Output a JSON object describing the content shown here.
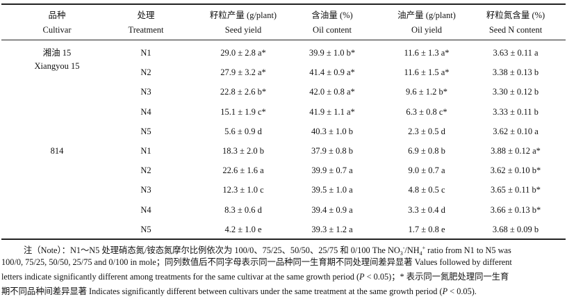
{
  "table": {
    "header": [
      [
        "品种",
        "Cultivar"
      ],
      [
        "处理",
        "Treatment"
      ],
      [
        "籽粒产量 (g/plant)",
        "Seed yield"
      ],
      [
        "含油量 (%)",
        "Oil content"
      ],
      [
        "油产量 (g/plant)",
        "Oil yield"
      ],
      [
        "籽粒氮含量 (%)",
        "Seed N content"
      ]
    ],
    "groups": [
      {
        "cultivar": [
          "湘油 15",
          "Xiangyou 15"
        ],
        "rows": [
          [
            "N1",
            "29.0 ± 2.8 a*",
            "39.9 ± 1.0 b*",
            "11.6 ± 1.3 a*",
            "3.63 ± 0.11 a"
          ],
          [
            "N2",
            "27.9 ± 3.2 a*",
            "41.4 ± 0.9 a*",
            "11.6 ± 1.5 a*",
            "3.38 ± 0.13 b"
          ],
          [
            "N3",
            "22.8 ± 2.6 b*",
            "42.0 ± 0.8 a*",
            "9.6 ± 1.2 b*",
            "3.30 ± 0.12 b"
          ],
          [
            "N4",
            "15.1 ± 1.9 c*",
            "41.9 ± 1.1 a*",
            "6.3 ± 0.8 c*",
            "3.33 ± 0.11 b"
          ],
          [
            "N5",
            "5.6 ± 0.9 d",
            "40.3 ± 1.0 b",
            "2.3 ± 0.5 d",
            "3.62 ± 0.10 a"
          ]
        ]
      },
      {
        "cultivar": [
          "814"
        ],
        "rows": [
          [
            "N1",
            "18.3 ± 2.0 b",
            "37.9 ± 0.8 b",
            "6.9 ± 0.8 b",
            "3.88 ± 0.12 a*"
          ],
          [
            "N2",
            "22.6 ± 1.6 a",
            "39.9 ± 0.7 a",
            "9.0 ± 0.7 a",
            "3.62 ± 0.10 b*"
          ],
          [
            "N3",
            "12.3 ± 1.0 c",
            "39.5 ± 1.0 a",
            "4.8 ± 0.5 c",
            "3.65 ± 0.11 b*"
          ],
          [
            "N4",
            "8.3 ± 0.6 d",
            "39.4 ± 0.9 a",
            "3.3 ± 0.4 d",
            "3.66 ± 0.13 b*"
          ],
          [
            "N5",
            "4.2 ± 1.0 e",
            "39.3 ± 1.2 a",
            "1.7 ± 0.8 e",
            "3.68 ± 0.09 b"
          ]
        ]
      }
    ]
  },
  "note": [
    [
      {
        "text": "注（Note）：N1～N5 处理硝态氮/铵态氮摩尔比例依次为 100/0、75/25、50/50、25/75 和 0/100 The NO"
      },
      {
        "text": "3",
        "style": "sub"
      },
      {
        "text": "-",
        "style": "sup"
      },
      {
        "text": "/NH"
      },
      {
        "text": "4",
        "style": "sub"
      },
      {
        "text": "+",
        "style": "sup"
      },
      {
        "text": " ratio from N1 to N5 was"
      }
    ],
    [
      {
        "text": "100/0, 75/25, 50/50, 25/75 and 0/100 in mole；同列数值后不同字母表示同一品种同一生育期不同处理间差异显著 Values followed by different"
      }
    ],
    [
      {
        "text": "letters indicate significantly different among treatments for the same cultivar at the same growth period ("
      },
      {
        "text": "P",
        "style": "italic"
      },
      {
        "text": " < 0.05)；* 表示同一氮肥处理同一生育"
      }
    ],
    [
      {
        "text": "期不同品种间差异显著 Indicates significantly different between cultivars under the same treatment at the same growth period ("
      },
      {
        "text": "P",
        "style": "italic"
      },
      {
        "text": " < 0.05)."
      }
    ]
  ]
}
